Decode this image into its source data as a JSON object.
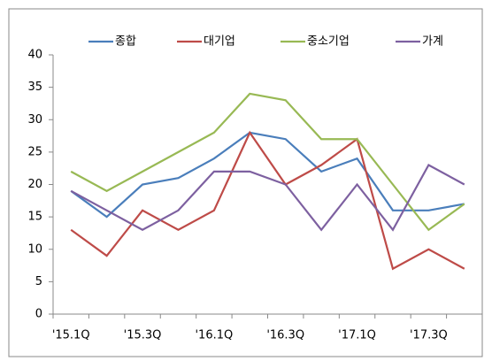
{
  "chart_data": {
    "type": "line",
    "categories": [
      "'15.1Q",
      null,
      "'15.3Q",
      null,
      "'16.1Q",
      null,
      "'16.3Q",
      null,
      "'17.1Q",
      null,
      "'17.3Q",
      null
    ],
    "series": [
      {
        "name": "종합",
        "color": "#4a7ebb",
        "values": [
          19,
          15,
          20,
          21,
          24,
          28,
          27,
          22,
          24,
          16,
          16,
          17
        ]
      },
      {
        "name": "대기업",
        "color": "#be4b48",
        "values": [
          13,
          9,
          16,
          13,
          16,
          28,
          20,
          23,
          27,
          7,
          10,
          7
        ]
      },
      {
        "name": "중소기업",
        "color": "#98b954",
        "values": [
          22,
          19,
          22,
          25,
          28,
          34,
          33,
          27,
          27,
          20,
          13,
          17
        ]
      },
      {
        "name": "가계",
        "color": "#7d60a0",
        "values": [
          19,
          16,
          13,
          16,
          22,
          22,
          20,
          13,
          20,
          13,
          23,
          20
        ]
      }
    ],
    "ylim": [
      0,
      40
    ],
    "yticks": [
      0,
      5,
      10,
      15,
      20,
      25,
      30,
      35,
      40
    ],
    "grid": false,
    "legend": "top"
  }
}
